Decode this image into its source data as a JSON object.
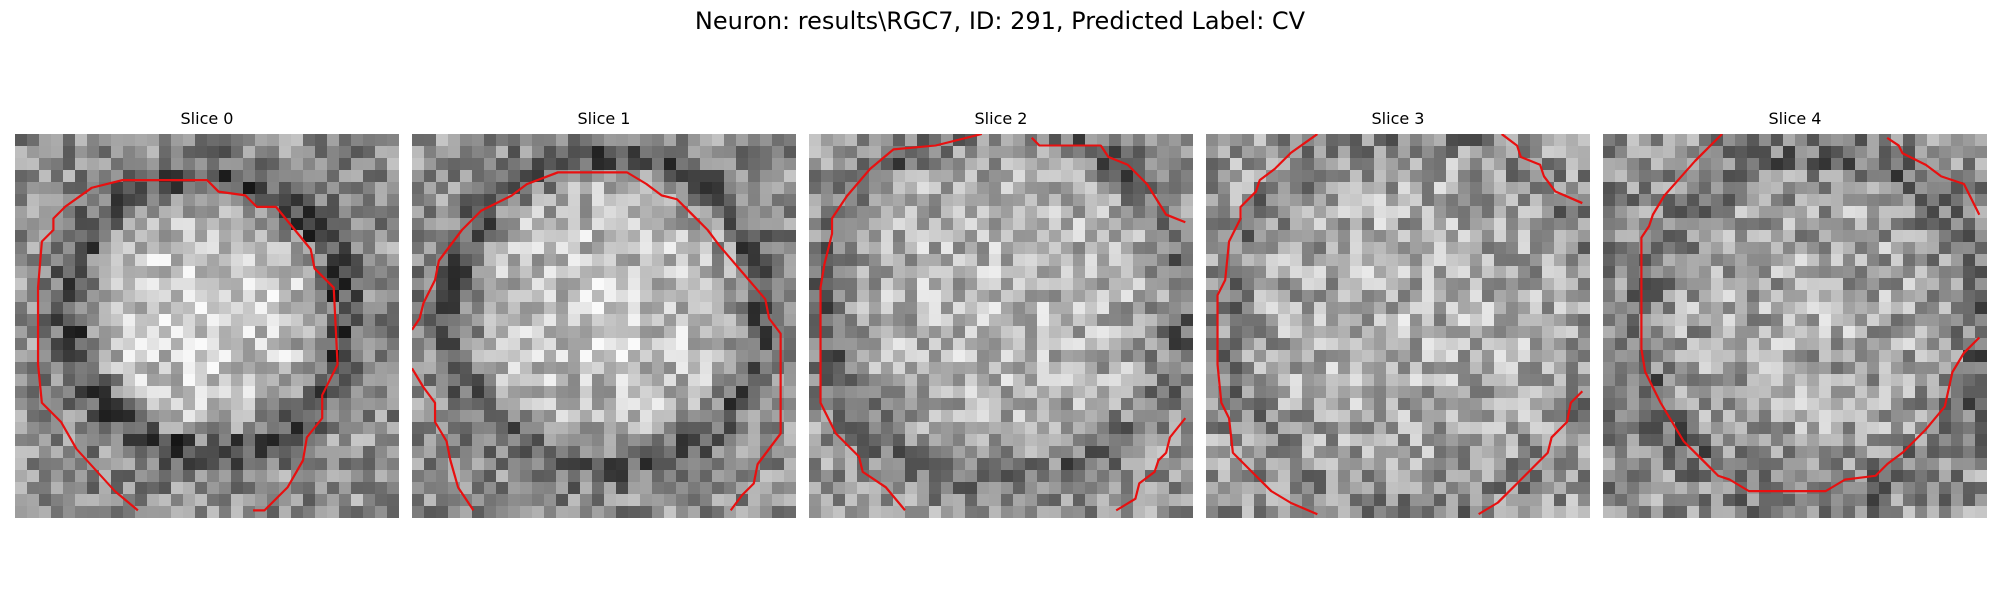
{
  "figure": {
    "title": "Neuron: results\\RGC7, ID: 291, Predicted Label: CV"
  },
  "colors": {
    "contour": "#e81010",
    "background": "#ffffff"
  },
  "slices": [
    {
      "title": "Slice 0"
    },
    {
      "title": "Slice 1"
    },
    {
      "title": "Slice 2"
    },
    {
      "title": "Slice 3"
    },
    {
      "title": "Slice 4"
    }
  ]
}
